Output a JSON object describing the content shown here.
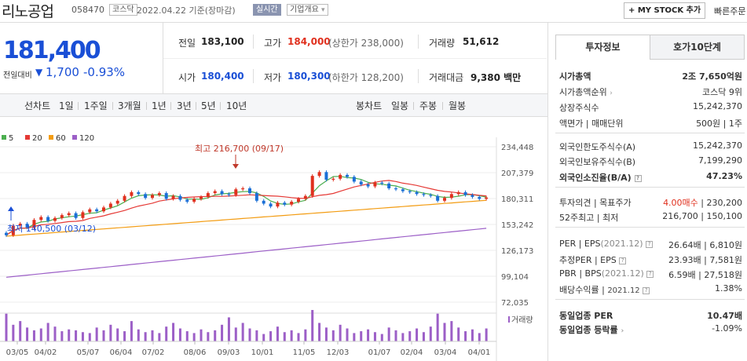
{
  "header": {
    "stock_name": "리노공업",
    "stock_code": "058470",
    "market": "코스닥",
    "date_text": "2022.04.22 기준(장마감)",
    "realtime": "실시간",
    "company_overview": "기업개요",
    "mystock": "+ MY STOCK 추가",
    "quick_order": "빠른주문"
  },
  "price": {
    "now": "181,400",
    "prev_label": "전일대비",
    "change": "1,700",
    "change_pct": "-0.93%"
  },
  "quote": {
    "prev_label": "전일",
    "prev": "183,100",
    "high_label": "고가",
    "high": "184,000",
    "upper_limit": "(상한가 238,000)",
    "volume_label": "거래량",
    "volume": "51,612",
    "open_label": "시가",
    "open": "180,400",
    "low_label": "저가",
    "low": "180,300",
    "lower_limit": "(하한가 128,200)",
    "amount_label": "거래대금",
    "amount": "9,380 백만"
  },
  "period": {
    "line_label": "선차트",
    "line_items": [
      "1일",
      "1주일",
      "3개월",
      "1년",
      "3년",
      "5년",
      "10년"
    ],
    "candle_label": "봉차트",
    "candle_items": [
      "일봉",
      "주봉",
      "월봉"
    ],
    "active": "주봉"
  },
  "legend": [
    "5",
    "20",
    "60",
    "120"
  ],
  "colors": {
    "ma5": "#4caf50",
    "ma20": "#e53935",
    "ma60": "#f39c12",
    "ma120": "#9c5fc7",
    "up": "#e0301e",
    "down": "#1a6fd6",
    "volume": "#9c5fc7"
  },
  "chart_data": {
    "type": "candlestick",
    "y_ticks": [
      "234,448",
      "207,379",
      "180,311",
      "153,242",
      "126,173",
      "99,104",
      "72,035"
    ],
    "ylim": [
      72035,
      234448
    ],
    "x_ticks": [
      "03/05",
      "04/02",
      "05/07",
      "06/04",
      "07/02",
      "08/06",
      "09/03",
      "10/01",
      "11/05",
      "12/03",
      "01/07",
      "02/04",
      "03/04",
      "04/01"
    ],
    "high_annotation": "최고 216,700 (09/17)",
    "low_annotation": "최저 140,500 (03/12)",
    "volume_label": "거래량",
    "closes": [
      142000,
      152000,
      154000,
      150000,
      158000,
      161000,
      157000,
      160000,
      163000,
      165000,
      160000,
      166000,
      169000,
      167000,
      171000,
      175000,
      178000,
      183000,
      187000,
      185000,
      181000,
      184000,
      186000,
      180000,
      183000,
      179000,
      177000,
      180000,
      182000,
      186000,
      188000,
      185000,
      184000,
      190000,
      191000,
      186000,
      178000,
      175000,
      172000,
      176000,
      174000,
      177000,
      180000,
      183000,
      204000,
      208000,
      200000,
      201000,
      205000,
      203000,
      198000,
      195000,
      193000,
      197000,
      196000,
      191000,
      190000,
      188000,
      187000,
      185000,
      184000,
      183000,
      178000,
      181000,
      185000,
      187000,
      184000,
      182000,
      180000,
      181400
    ],
    "volumes": [
      30,
      18,
      22,
      15,
      12,
      14,
      20,
      16,
      11,
      13,
      12,
      10,
      9,
      15,
      12,
      18,
      14,
      11,
      22,
      13,
      10,
      12,
      9,
      16,
      20,
      14,
      11,
      9,
      13,
      10,
      12,
      18,
      26,
      15,
      20,
      14,
      12,
      8,
      11,
      16,
      10,
      12,
      9,
      13,
      34,
      20,
      15,
      12,
      18,
      14,
      9,
      11,
      13,
      10,
      8,
      15,
      12,
      9,
      11,
      14,
      10,
      16,
      30,
      20,
      22,
      15,
      11,
      13,
      9,
      14
    ]
  },
  "panel": {
    "tab_invest": "투자정보",
    "tab_hoga": "호가10단계",
    "market_cap_label": "시가총액",
    "market_cap": "2조 7,650억원",
    "cap_rank_label": "시가총액순위",
    "cap_rank": "코스닥 9위",
    "listed_label": "상장주식수",
    "listed": "15,242,370",
    "face_label": "액면가 | 매매단위",
    "face": "500원 | 1주",
    "foreign_limit_label": "외국인한도주식수(A)",
    "foreign_limit": "15,242,370",
    "foreign_hold_label": "외국인보유주식수(B)",
    "foreign_hold": "7,199,290",
    "foreign_rate_label": "외국인소진율(B/A)",
    "foreign_rate": "47.23%",
    "opinion_label": "투자의견 | 목표주가",
    "opinion": "4.00매수",
    "target": "230,200",
    "w52_label": "52주최고 | 최저",
    "w52_high": "216,700",
    "w52_low": "150,100",
    "per_label": "PER | EPS",
    "per_period": "(2021.12)",
    "per": "26.64배",
    "eps": "6,810원",
    "est_per_label": "추정PER | EPS",
    "est_per": "23.93배",
    "est_eps": "7,581원",
    "pbr_label": "PBR | BPS",
    "pbr_period": "(2021.12)",
    "pbr": "6.59배",
    "bps": "27,518원",
    "div_label": "배당수익률",
    "div_period": "2021.12",
    "div": "1.38%",
    "sector_per_label": "동일업종 PER",
    "sector_per": "10.47배",
    "sector_chg_label": "동일업종 등락률",
    "sector_chg": "-1.09%"
  }
}
